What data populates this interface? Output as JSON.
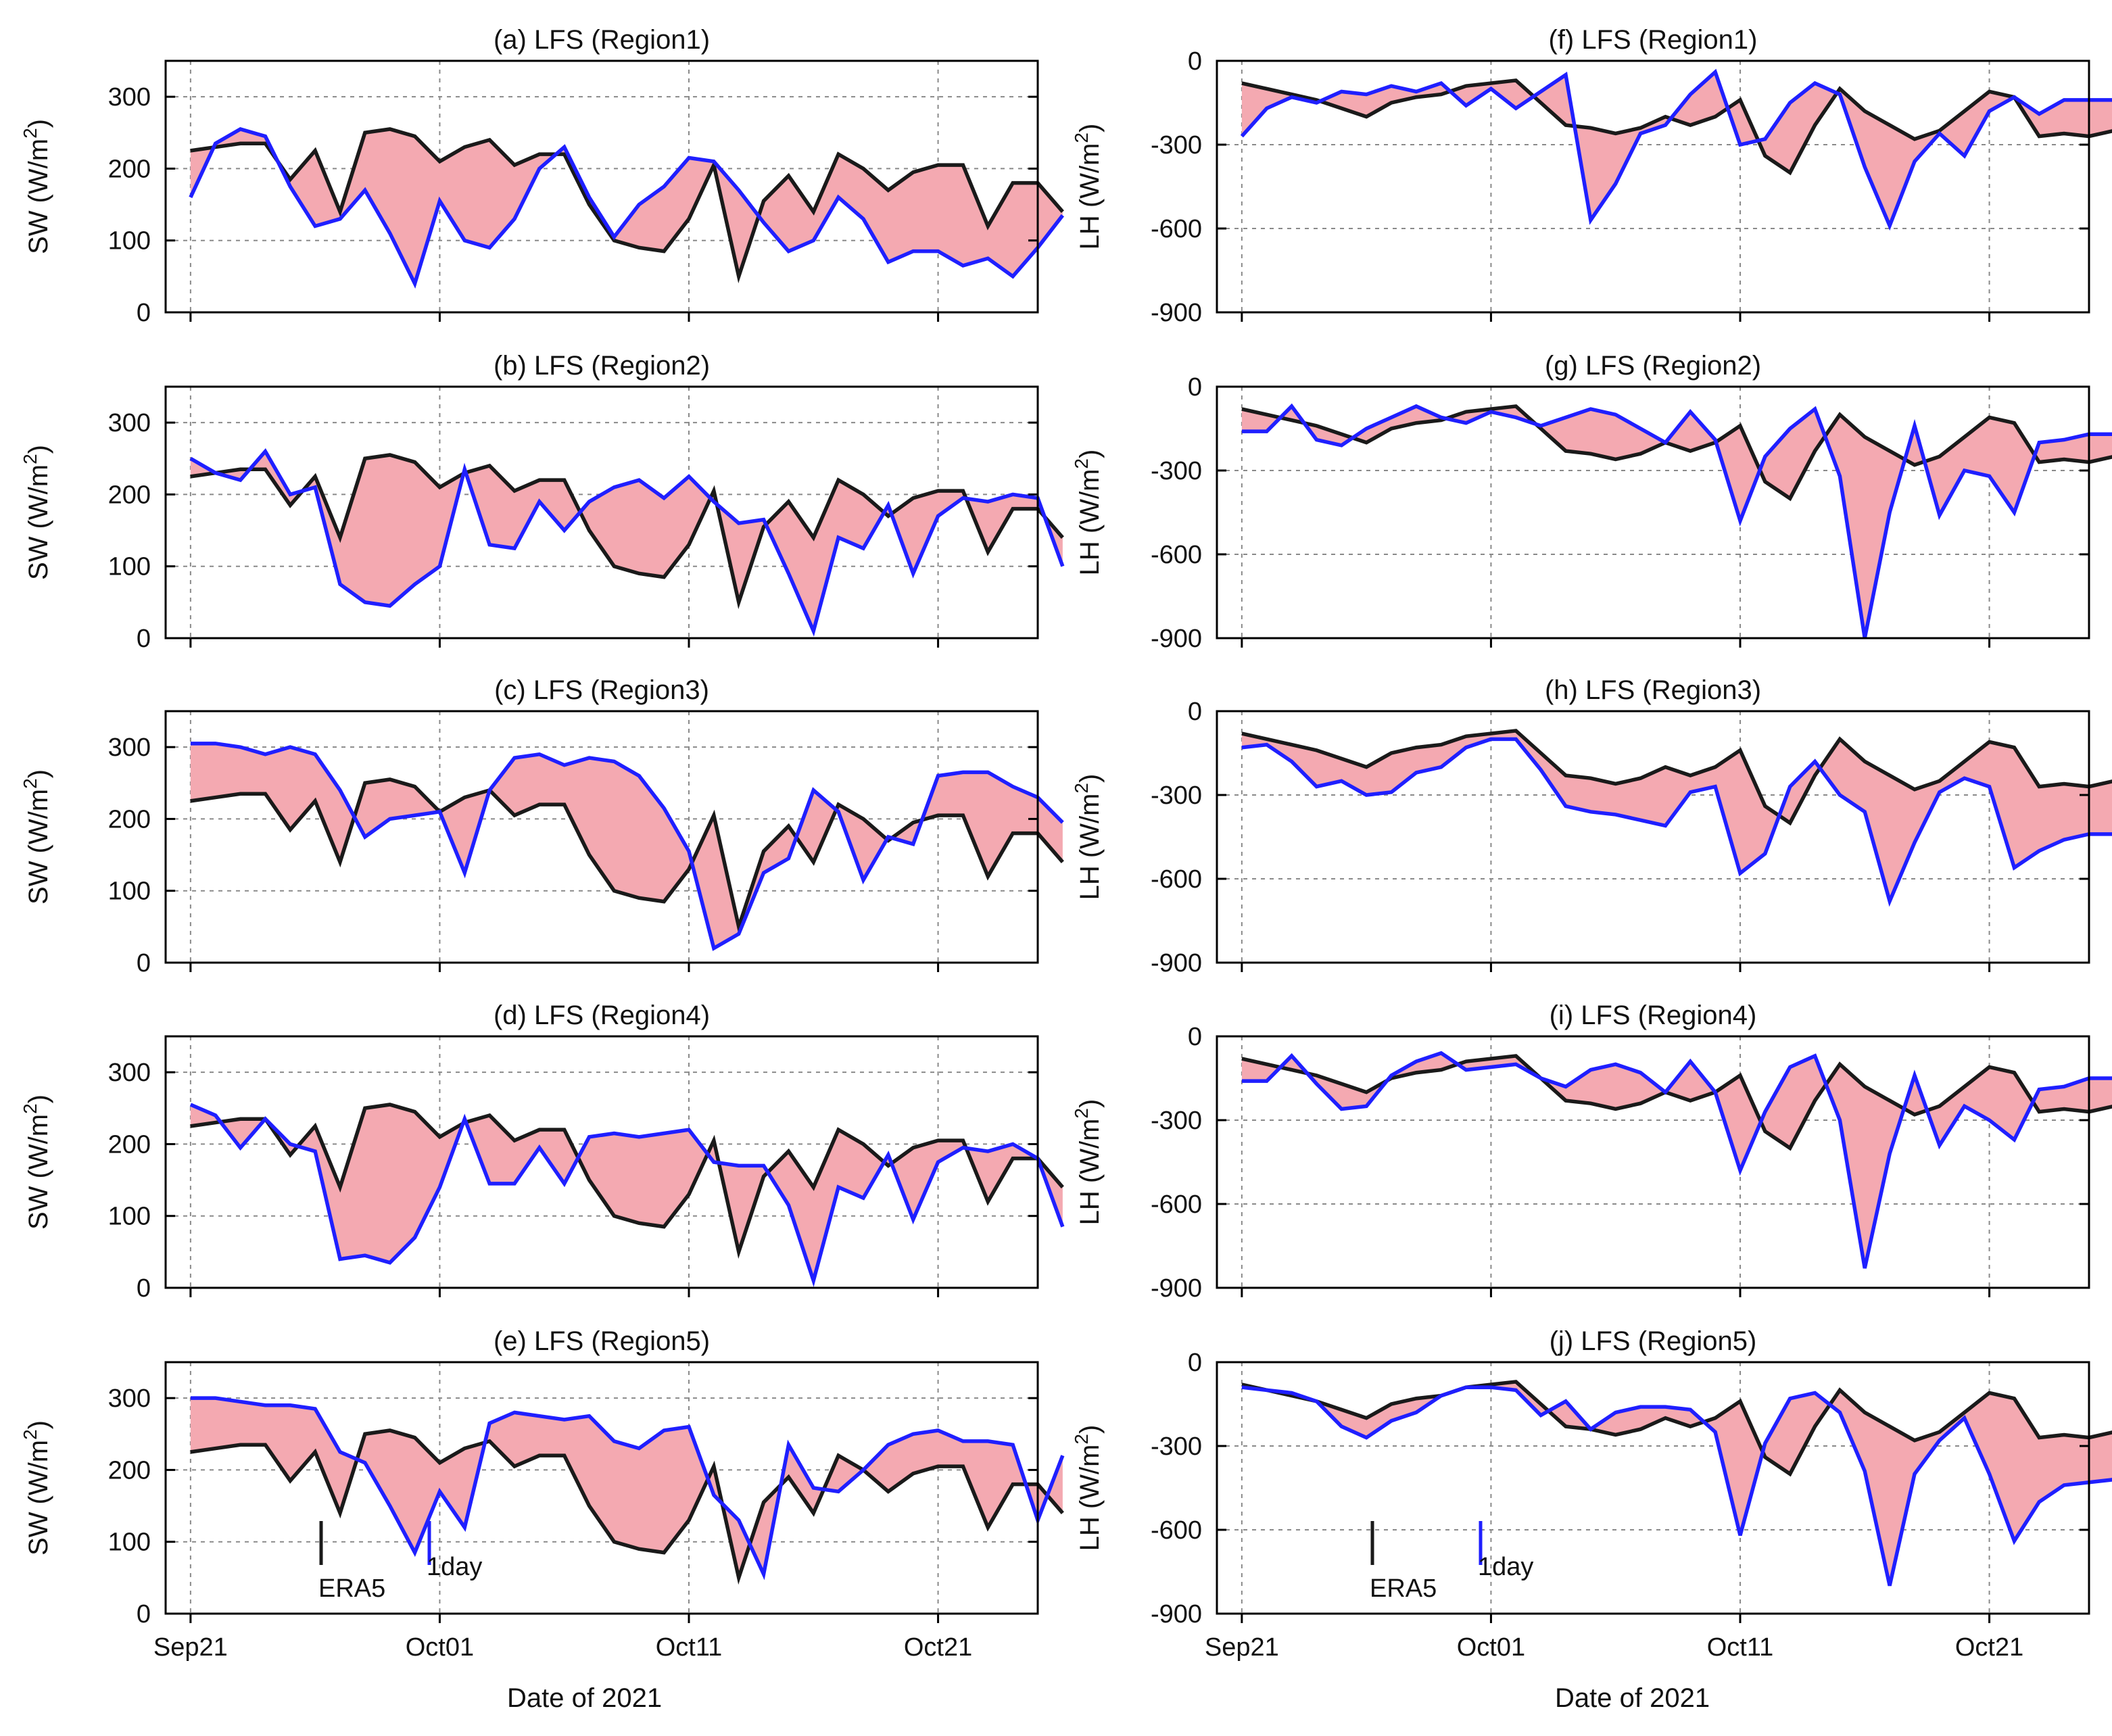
{
  "figure": {
    "xlabel": "Date of 2021",
    "x_tick_labels": [
      "Sep21",
      "Oct01",
      "Oct11",
      "Oct21"
    ],
    "colors": {
      "era5": "#1a1a1a",
      "model": "#1f1fff",
      "fill": "#f4a9b1",
      "frame": "#000000",
      "grid": "#8a8a8a"
    },
    "legend": {
      "era5": "ERA5",
      "model": "1day"
    }
  },
  "chart_data": [
    {
      "id": "a",
      "type": "line",
      "title": "(a) LFS (Region1)",
      "ylabel_main": "SW (W/m",
      "ylabel_sup": "2",
      "ylabel_close": ")",
      "ylim": [
        0,
        350
      ],
      "yticks": [
        0,
        100,
        200,
        300
      ],
      "ytick_labels": [
        "0",
        "100",
        "200",
        "300"
      ],
      "xlim": [
        -1,
        34
      ],
      "x_ticks": [
        0,
        10,
        20,
        30
      ],
      "series": [
        {
          "name": "ERA5",
          "values": [
            225,
            230,
            235,
            235,
            185,
            225,
            140,
            250,
            255,
            245,
            210,
            230,
            240,
            205,
            220,
            220,
            150,
            100,
            90,
            85,
            130,
            205,
            50,
            155,
            190,
            140,
            220,
            200,
            170,
            195,
            205,
            205,
            120,
            180,
            180,
            140
          ]
        },
        {
          "name": "1day",
          "values": [
            160,
            235,
            255,
            245,
            175,
            120,
            130,
            170,
            110,
            40,
            155,
            100,
            90,
            130,
            200,
            230,
            160,
            105,
            150,
            175,
            215,
            210,
            170,
            125,
            85,
            100,
            160,
            130,
            70,
            85,
            85,
            65,
            75,
            50,
            90,
            135
          ]
        }
      ]
    },
    {
      "id": "b",
      "type": "line",
      "title": "(b) LFS (Region2)",
      "ylabel_main": "SW (W/m",
      "ylabel_sup": "2",
      "ylabel_close": ")",
      "ylim": [
        0,
        350
      ],
      "yticks": [
        0,
        100,
        200,
        300
      ],
      "ytick_labels": [
        "0",
        "100",
        "200",
        "300"
      ],
      "xlim": [
        -1,
        34
      ],
      "x_ticks": [
        0,
        10,
        20,
        30
      ],
      "series": [
        {
          "name": "ERA5",
          "values": [
            225,
            230,
            235,
            235,
            185,
            225,
            140,
            250,
            255,
            245,
            210,
            230,
            240,
            205,
            220,
            220,
            150,
            100,
            90,
            85,
            130,
            205,
            50,
            155,
            190,
            140,
            220,
            200,
            170,
            195,
            205,
            205,
            120,
            180,
            180,
            140
          ]
        },
        {
          "name": "1day",
          "values": [
            250,
            230,
            220,
            260,
            200,
            210,
            75,
            50,
            45,
            75,
            100,
            235,
            130,
            125,
            190,
            150,
            190,
            210,
            220,
            195,
            225,
            190,
            160,
            165,
            90,
            10,
            140,
            125,
            185,
            90,
            170,
            195,
            190,
            200,
            195,
            100
          ]
        }
      ]
    },
    {
      "id": "c",
      "type": "line",
      "title": "(c) LFS (Region3)",
      "ylabel_main": "SW (W/m",
      "ylabel_sup": "2",
      "ylabel_close": ")",
      "ylim": [
        0,
        350
      ],
      "yticks": [
        0,
        100,
        200,
        300
      ],
      "ytick_labels": [
        "0",
        "100",
        "200",
        "300"
      ],
      "xlim": [
        -1,
        34
      ],
      "x_ticks": [
        0,
        10,
        20,
        30
      ],
      "series": [
        {
          "name": "ERA5",
          "values": [
            225,
            230,
            235,
            235,
            185,
            225,
            140,
            250,
            255,
            245,
            210,
            230,
            240,
            205,
            220,
            220,
            150,
            100,
            90,
            85,
            130,
            205,
            50,
            155,
            190,
            140,
            220,
            200,
            170,
            195,
            205,
            205,
            120,
            180,
            180,
            140
          ]
        },
        {
          "name": "1day",
          "values": [
            305,
            305,
            300,
            290,
            300,
            290,
            240,
            175,
            200,
            205,
            210,
            125,
            240,
            285,
            290,
            275,
            285,
            280,
            260,
            215,
            155,
            20,
            40,
            125,
            145,
            240,
            210,
            115,
            175,
            165,
            260,
            265,
            265,
            245,
            230,
            195
          ]
        }
      ]
    },
    {
      "id": "d",
      "type": "line",
      "title": "(d) LFS (Region4)",
      "ylabel_main": "SW (W/m",
      "ylabel_sup": "2",
      "ylabel_close": ")",
      "ylim": [
        0,
        350
      ],
      "yticks": [
        0,
        100,
        200,
        300
      ],
      "ytick_labels": [
        "0",
        "100",
        "200",
        "300"
      ],
      "xlim": [
        -1,
        34
      ],
      "x_ticks": [
        0,
        10,
        20,
        30
      ],
      "series": [
        {
          "name": "ERA5",
          "values": [
            225,
            230,
            235,
            235,
            185,
            225,
            140,
            250,
            255,
            245,
            210,
            230,
            240,
            205,
            220,
            220,
            150,
            100,
            90,
            85,
            130,
            205,
            50,
            155,
            190,
            140,
            220,
            200,
            170,
            195,
            205,
            205,
            120,
            180,
            180,
            140
          ]
        },
        {
          "name": "1day",
          "values": [
            255,
            240,
            195,
            235,
            200,
            190,
            40,
            45,
            35,
            70,
            140,
            235,
            145,
            145,
            195,
            145,
            210,
            215,
            210,
            215,
            220,
            175,
            170,
            170,
            115,
            10,
            140,
            125,
            185,
            95,
            175,
            195,
            190,
            200,
            180,
            85
          ]
        }
      ]
    },
    {
      "id": "e",
      "type": "line",
      "title": "(e) LFS (Region5)",
      "ylabel_main": "SW (W/m",
      "ylabel_sup": "2",
      "ylabel_close": ")",
      "ylim": [
        0,
        350
      ],
      "yticks": [
        0,
        100,
        200,
        300
      ],
      "ytick_labels": [
        "0",
        "100",
        "200",
        "300"
      ],
      "xlim": [
        -1,
        34
      ],
      "x_ticks": [
        0,
        10,
        20,
        30
      ],
      "show_xticklabels": true,
      "show_legend": true,
      "series": [
        {
          "name": "ERA5",
          "values": [
            225,
            230,
            235,
            235,
            185,
            225,
            140,
            250,
            255,
            245,
            210,
            230,
            240,
            205,
            220,
            220,
            150,
            100,
            90,
            85,
            130,
            205,
            50,
            155,
            190,
            140,
            220,
            200,
            170,
            195,
            205,
            205,
            120,
            180,
            180,
            140
          ]
        },
        {
          "name": "1day",
          "values": [
            300,
            300,
            295,
            290,
            290,
            285,
            225,
            210,
            150,
            85,
            170,
            120,
            265,
            280,
            275,
            270,
            275,
            240,
            230,
            255,
            260,
            165,
            130,
            55,
            235,
            175,
            170,
            200,
            235,
            250,
            255,
            240,
            240,
            235,
            130,
            220
          ]
        }
      ]
    },
    {
      "id": "f",
      "type": "line",
      "title": "(f) LFS (Region1)",
      "ylabel_main": "LH (W/m",
      "ylabel_sup": "2",
      "ylabel_close": ")",
      "ylim": [
        -900,
        0
      ],
      "yticks": [
        -900,
        -600,
        -300,
        0
      ],
      "ytick_labels": [
        "-900",
        "-600",
        "-300",
        "0"
      ],
      "xlim": [
        -1,
        34
      ],
      "x_ticks": [
        0,
        10,
        20,
        30
      ],
      "series": [
        {
          "name": "ERA5",
          "values": [
            -80,
            -100,
            -120,
            -140,
            -170,
            -200,
            -150,
            -130,
            -120,
            -90,
            -80,
            -70,
            -150,
            -230,
            -240,
            -260,
            -240,
            -200,
            -230,
            -200,
            -140,
            -340,
            -400,
            -230,
            -100,
            -180,
            -230,
            -280,
            -250,
            -180,
            -110,
            -130,
            -270,
            -260,
            -270,
            -250
          ]
        },
        {
          "name": "1day",
          "values": [
            -270,
            -170,
            -130,
            -150,
            -110,
            -120,
            -90,
            -110,
            -80,
            -160,
            -100,
            -170,
            -110,
            -50,
            -570,
            -440,
            -260,
            -230,
            -120,
            -40,
            -300,
            -280,
            -150,
            -80,
            -120,
            -380,
            -590,
            -360,
            -260,
            -340,
            -180,
            -130,
            -190,
            -140,
            -140,
            -140
          ]
        }
      ]
    },
    {
      "id": "g",
      "type": "line",
      "title": "(g) LFS (Region2)",
      "ylabel_main": "LH (W/m",
      "ylabel_sup": "2",
      "ylabel_close": ")",
      "ylim": [
        -900,
        0
      ],
      "yticks": [
        -900,
        -600,
        -300,
        0
      ],
      "ytick_labels": [
        "-900",
        "-600",
        "-300",
        "0"
      ],
      "xlim": [
        -1,
        34
      ],
      "x_ticks": [
        0,
        10,
        20,
        30
      ],
      "series": [
        {
          "name": "ERA5",
          "values": [
            -80,
            -100,
            -120,
            -140,
            -170,
            -200,
            -150,
            -130,
            -120,
            -90,
            -80,
            -70,
            -150,
            -230,
            -240,
            -260,
            -240,
            -200,
            -230,
            -200,
            -140,
            -340,
            -400,
            -230,
            -100,
            -180,
            -230,
            -280,
            -250,
            -180,
            -110,
            -130,
            -270,
            -260,
            -270,
            -250
          ]
        },
        {
          "name": "1day",
          "values": [
            -160,
            -160,
            -70,
            -190,
            -210,
            -150,
            -110,
            -70,
            -110,
            -130,
            -90,
            -110,
            -140,
            -110,
            -80,
            -100,
            -150,
            -200,
            -90,
            -190,
            -480,
            -250,
            -150,
            -80,
            -320,
            -900,
            -450,
            -140,
            -460,
            -300,
            -320,
            -450,
            -200,
            -190,
            -170,
            -170
          ]
        }
      ]
    },
    {
      "id": "h",
      "type": "line",
      "title": "(h) LFS (Region3)",
      "ylabel_main": "LH (W/m",
      "ylabel_sup": "2",
      "ylabel_close": ")",
      "ylim": [
        -900,
        0
      ],
      "yticks": [
        -900,
        -600,
        -300,
        0
      ],
      "ytick_labels": [
        "-900",
        "-600",
        "-300",
        "0"
      ],
      "xlim": [
        -1,
        34
      ],
      "x_ticks": [
        0,
        10,
        20,
        30
      ],
      "series": [
        {
          "name": "ERA5",
          "values": [
            -80,
            -100,
            -120,
            -140,
            -170,
            -200,
            -150,
            -130,
            -120,
            -90,
            -80,
            -70,
            -150,
            -230,
            -240,
            -260,
            -240,
            -200,
            -230,
            -200,
            -140,
            -340,
            -400,
            -230,
            -100,
            -180,
            -230,
            -280,
            -250,
            -180,
            -110,
            -130,
            -270,
            -260,
            -270,
            -250
          ]
        },
        {
          "name": "1day",
          "values": [
            -130,
            -120,
            -180,
            -270,
            -250,
            -300,
            -290,
            -220,
            -200,
            -130,
            -100,
            -100,
            -210,
            -340,
            -360,
            -370,
            -390,
            -410,
            -290,
            -270,
            -580,
            -510,
            -270,
            -180,
            -300,
            -360,
            -680,
            -470,
            -290,
            -240,
            -270,
            -560,
            -500,
            -460,
            -440,
            -440
          ]
        }
      ]
    },
    {
      "id": "i",
      "type": "line",
      "title": "(i) LFS (Region4)",
      "ylabel_main": "LH (W/m",
      "ylabel_sup": "2",
      "ylabel_close": ")",
      "ylim": [
        -900,
        0
      ],
      "yticks": [
        -900,
        -600,
        -300,
        0
      ],
      "ytick_labels": [
        "-900",
        "-600",
        "-300",
        "0"
      ],
      "xlim": [
        -1,
        34
      ],
      "x_ticks": [
        0,
        10,
        20,
        30
      ],
      "series": [
        {
          "name": "ERA5",
          "values": [
            -80,
            -100,
            -120,
            -140,
            -170,
            -200,
            -150,
            -130,
            -120,
            -90,
            -80,
            -70,
            -150,
            -230,
            -240,
            -260,
            -240,
            -200,
            -230,
            -200,
            -140,
            -340,
            -400,
            -230,
            -100,
            -180,
            -230,
            -280,
            -250,
            -180,
            -110,
            -130,
            -270,
            -260,
            -270,
            -250
          ]
        },
        {
          "name": "1day",
          "values": [
            -160,
            -160,
            -70,
            -170,
            -260,
            -250,
            -140,
            -90,
            -60,
            -120,
            -110,
            -100,
            -150,
            -180,
            -120,
            -100,
            -130,
            -200,
            -90,
            -200,
            -480,
            -270,
            -110,
            -70,
            -300,
            -830,
            -420,
            -140,
            -390,
            -250,
            -300,
            -370,
            -190,
            -180,
            -150,
            -150
          ]
        }
      ]
    },
    {
      "id": "j",
      "type": "line",
      "title": "(j) LFS (Region5)",
      "ylabel_main": "LH (W/m",
      "ylabel_sup": "2",
      "ylabel_close": ")",
      "ylim": [
        -900,
        0
      ],
      "yticks": [
        -900,
        -600,
        -300,
        0
      ],
      "ytick_labels": [
        "-900",
        "-600",
        "-300",
        "0"
      ],
      "xlim": [
        -1,
        34
      ],
      "x_ticks": [
        0,
        10,
        20,
        30
      ],
      "show_xticklabels": true,
      "show_legend": true,
      "series": [
        {
          "name": "ERA5",
          "values": [
            -80,
            -100,
            -120,
            -140,
            -170,
            -200,
            -150,
            -130,
            -120,
            -90,
            -80,
            -70,
            -150,
            -230,
            -240,
            -260,
            -240,
            -200,
            -230,
            -200,
            -140,
            -340,
            -400,
            -230,
            -100,
            -180,
            -230,
            -280,
            -250,
            -180,
            -110,
            -130,
            -270,
            -260,
            -270,
            -250
          ]
        },
        {
          "name": "1day",
          "values": [
            -90,
            -100,
            -110,
            -140,
            -230,
            -270,
            -210,
            -180,
            -120,
            -90,
            -90,
            -100,
            -190,
            -140,
            -240,
            -180,
            -160,
            -160,
            -170,
            -250,
            -620,
            -290,
            -130,
            -110,
            -180,
            -390,
            -800,
            -400,
            -280,
            -200,
            -400,
            -640,
            -500,
            -440,
            -430,
            -420
          ]
        }
      ]
    }
  ]
}
